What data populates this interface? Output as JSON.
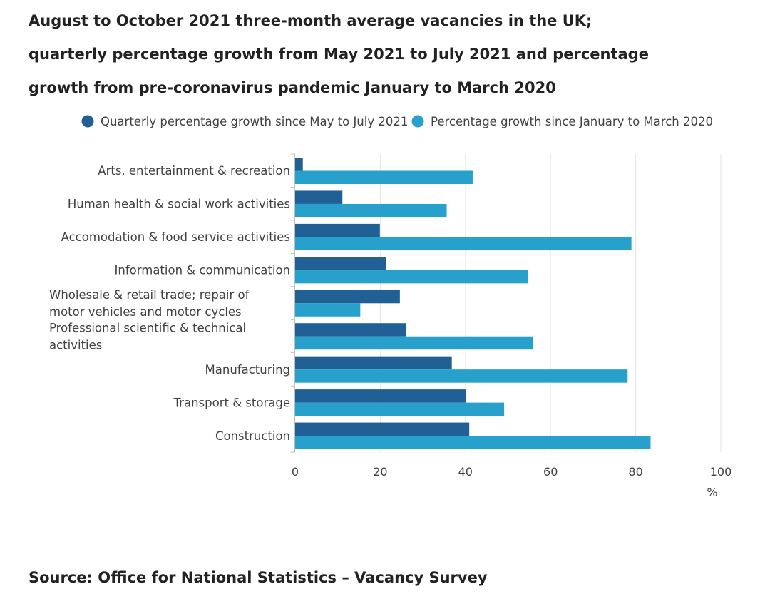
{
  "title_lines": [
    "August to October 2021 three-month average vacancies in the UK;",
    "quarterly percentage growth from May 2021 to July 2021 and percentage",
    "growth from pre-coronavirus pandemic January to March 2020"
  ],
  "source": "Source: Office for National Statistics – Vacancy Survey",
  "colors": {
    "series_dark": "#206095",
    "series_light": "#27a0cc",
    "grid": "#e6e6e6",
    "axis": "#bebebe",
    "text": "#414042"
  },
  "chart_data": {
    "type": "bar",
    "orientation": "horizontal",
    "title": "August to October 2021 three-month average vacancies in the UK; quarterly percentage growth from May 2021 to July 2021 and percentage growth from pre-coronavirus pandemic January to March 2020",
    "categories": [
      [
        "Arts, entertainment & recreation"
      ],
      [
        "Human health & social work activities"
      ],
      [
        "Accomodation & food service activities"
      ],
      [
        "Information & communication"
      ],
      [
        "Wholesale & retail trade; repair of",
        "motor vehicles and motor cycles"
      ],
      [
        "Professional scientific & technical",
        "activities"
      ],
      [
        "Manufacturing"
      ],
      [
        "Transport & storage"
      ],
      [
        "Construction"
      ]
    ],
    "series": [
      {
        "name": "Quarterly percentage growth since May to July 2021",
        "values": [
          1.8,
          11.1,
          19.9,
          21.4,
          24.6,
          26.0,
          36.8,
          40.2,
          40.9
        ]
      },
      {
        "name": "Percentage growth since January to March 2020",
        "values": [
          41.7,
          35.6,
          79.0,
          54.7,
          15.3,
          55.9,
          78.1,
          49.1,
          83.5
        ]
      }
    ],
    "xlim": [
      0,
      100
    ],
    "xticks": [
      0,
      20,
      40,
      60,
      80,
      100
    ],
    "xlabel": "%",
    "ylabel": "",
    "grid": true,
    "legend": "top"
  }
}
